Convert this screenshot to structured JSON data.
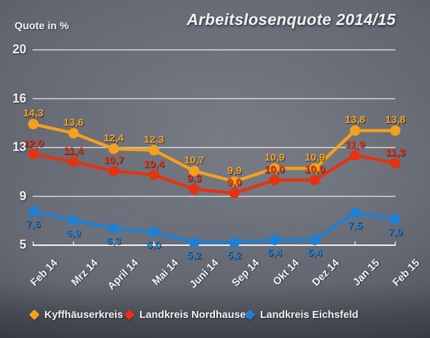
{
  "chart_data": {
    "type": "line",
    "title": "Arbeitslosenquote 2014/15",
    "ylabel": "Quote in %",
    "xlabel": "",
    "categories": [
      "Feb 14",
      "Mrz 14",
      "April 14",
      "Mai 14",
      "Juni 14",
      "Sep 14",
      "Okt 14",
      "Dez 14",
      "Jan 15",
      "Feb 15"
    ],
    "y_ticks": [
      "20",
      "16",
      "13",
      "9",
      "5"
    ],
    "ylim": [
      5,
      20
    ],
    "grid": true,
    "legend_position": "bottom",
    "series": [
      {
        "name": "Kyffhäuserkreis",
        "color": "#F6A11B",
        "values": [
          14.3,
          13.6,
          12.4,
          12.3,
          10.7,
          9.9,
          10.9,
          10.9,
          13.8,
          13.8
        ],
        "labels": [
          "14,3",
          "13,6",
          "12,4",
          "12,3",
          "10,7",
          "9,9",
          "10,9",
          "10,9",
          "13,8",
          "13,8"
        ],
        "label_position": "above"
      },
      {
        "name": "Landkreis Nordhausen",
        "color": "#E63210",
        "values": [
          12.0,
          11.4,
          10.7,
          10.4,
          9.3,
          9.0,
          10.0,
          10.0,
          11.9,
          11.3
        ],
        "labels": [
          "12,0",
          "11,4",
          "10,7",
          "10,4",
          "9,3",
          "9,0",
          "10,0",
          "10,0",
          "11,9",
          "11,3"
        ],
        "label_position": "above"
      },
      {
        "name": "Landkreis Eichsfeld",
        "color": "#1E80D4",
        "values": [
          7.6,
          6.9,
          6.3,
          6.0,
          5.2,
          5.2,
          5.4,
          5.4,
          7.5,
          7.0
        ],
        "labels": [
          "7,6",
          "6,9",
          "6,3",
          "6,0",
          "5,2",
          "5,2",
          "5,4",
          "5,4",
          "7,5",
          "7,0"
        ],
        "label_position": "below"
      }
    ],
    "style": {
      "grid_color": "#ffffff",
      "text_color": "#f2f2f2",
      "background": "#5e626c"
    }
  }
}
